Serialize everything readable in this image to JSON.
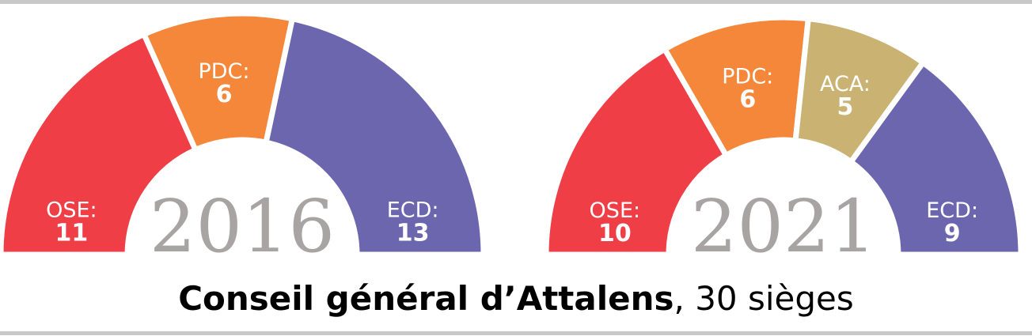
{
  "chart_data": [
    {
      "type": "semicircle",
      "title": "2016",
      "categories": [
        "OSE:",
        "PDC:",
        "ECD:"
      ],
      "values": [
        11,
        6,
        13
      ],
      "colors": [
        "#f03e47",
        "#f5873a",
        "#6b66ae"
      ]
    },
    {
      "type": "semicircle",
      "title": "2021",
      "categories": [
        "OSE:",
        "PDC:",
        "ACA:",
        "ECD:"
      ],
      "values": [
        10,
        6,
        5,
        9
      ],
      "colors": [
        "#f03e47",
        "#f5873a",
        "#c9b272",
        "#6b66ae"
      ]
    }
  ],
  "caption": {
    "bold": "Conseil général d’Attalens",
    "regular": ", 30 sièges"
  }
}
